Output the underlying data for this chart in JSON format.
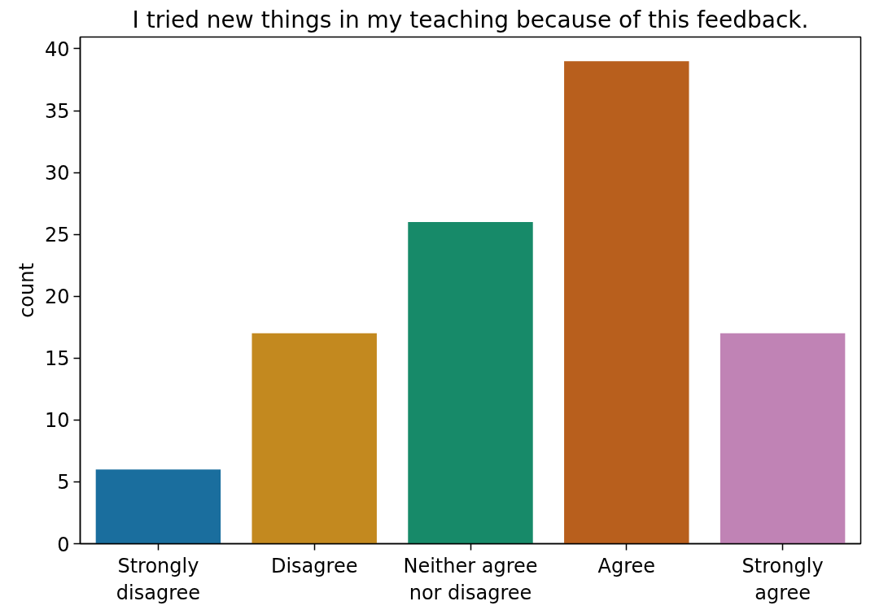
{
  "chart_data": {
    "type": "bar",
    "title": "I tried new things in my teaching because of this feedback.",
    "ylabel": "count",
    "categories": [
      "Strongly disagree",
      "Disagree",
      "Neither agree nor disagree",
      "Agree",
      "Strongly agree"
    ],
    "values": [
      6,
      17,
      26,
      39,
      17
    ],
    "colors": [
      "#1a6e9e",
      "#c3891f",
      "#178a69",
      "#b85f1d",
      "#c083b5"
    ],
    "ylim": [
      0,
      40.95
    ],
    "yticks": [
      0,
      5,
      10,
      15,
      20,
      25,
      30,
      35,
      40
    ],
    "grid": false
  }
}
